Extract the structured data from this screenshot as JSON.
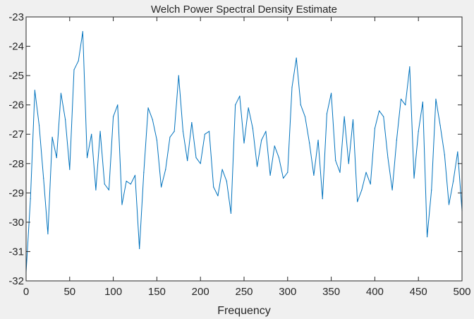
{
  "chart_data": {
    "type": "line",
    "title": "Welch Power Spectral Density Estimate",
    "xlabel": "Frequency",
    "ylabel": "",
    "xlim": [
      0,
      500
    ],
    "ylim": [
      -32,
      -23
    ],
    "xticks": [
      0,
      50,
      100,
      150,
      200,
      250,
      300,
      350,
      400,
      450,
      500
    ],
    "yticks": [
      -32,
      -31,
      -30,
      -29,
      -28,
      -27,
      -26,
      -25,
      -24,
      -23
    ],
    "grid": false,
    "legend": "none",
    "colors": {
      "line": "#0072bd",
      "axes_bg": "#ffffff",
      "figure_bg": "#f0f0f0",
      "axis": "#262626"
    },
    "series": [
      {
        "x": [
          0,
          5,
          10,
          15,
          20,
          25,
          30,
          35,
          40,
          45,
          50,
          55,
          60,
          65,
          70,
          75,
          80,
          85,
          90,
          95,
          100,
          105,
          110,
          115,
          120,
          125,
          130,
          135,
          140,
          145,
          150,
          155,
          160,
          165,
          170,
          175,
          180,
          185,
          190,
          195,
          200,
          205,
          210,
          215,
          220,
          225,
          230,
          235,
          240,
          245,
          250,
          255,
          260,
          265,
          270,
          275,
          280,
          285,
          290,
          295,
          300,
          305,
          310,
          315,
          320,
          325,
          330,
          335,
          340,
          345,
          350,
          355,
          360,
          365,
          370,
          375,
          380,
          385,
          390,
          395,
          400,
          405,
          410,
          415,
          420,
          425,
          430,
          435,
          440,
          445,
          450,
          455,
          460,
          465,
          470,
          475,
          480,
          485,
          490,
          495,
          500
        ],
        "y": [
          -31.7,
          -29.2,
          -25.5,
          -26.7,
          -28.5,
          -30.4,
          -27.1,
          -27.8,
          -25.6,
          -26.5,
          -28.2,
          -24.8,
          -24.5,
          -23.5,
          -27.8,
          -27.0,
          -28.9,
          -26.9,
          -28.7,
          -28.9,
          -26.4,
          -26.0,
          -29.4,
          -28.6,
          -28.7,
          -28.4,
          -30.9,
          -28.3,
          -26.1,
          -26.5,
          -27.2,
          -28.8,
          -28.2,
          -27.1,
          -26.9,
          -25.0,
          -26.9,
          -27.9,
          -26.6,
          -27.8,
          -28.0,
          -27.0,
          -26.9,
          -28.8,
          -29.1,
          -28.2,
          -28.6,
          -29.7,
          -26.0,
          -25.7,
          -27.3,
          -26.1,
          -26.8,
          -28.1,
          -27.2,
          -26.9,
          -28.4,
          -27.4,
          -27.8,
          -28.5,
          -28.3,
          -25.4,
          -24.4,
          -26.0,
          -26.4,
          -27.3,
          -28.4,
          -27.2,
          -29.2,
          -26.3,
          -25.6,
          -27.9,
          -28.3,
          -26.4,
          -28.0,
          -26.5,
          -29.3,
          -28.9,
          -28.3,
          -28.7,
          -26.8,
          -26.2,
          -26.4,
          -27.8,
          -28.9,
          -27.2,
          -25.8,
          -26.0,
          -24.7,
          -28.5,
          -26.9,
          -25.9,
          -30.5,
          -28.9,
          -25.8,
          -26.7,
          -27.7,
          -29.4,
          -28.6,
          -27.6,
          -29.6
        ]
      }
    ]
  }
}
